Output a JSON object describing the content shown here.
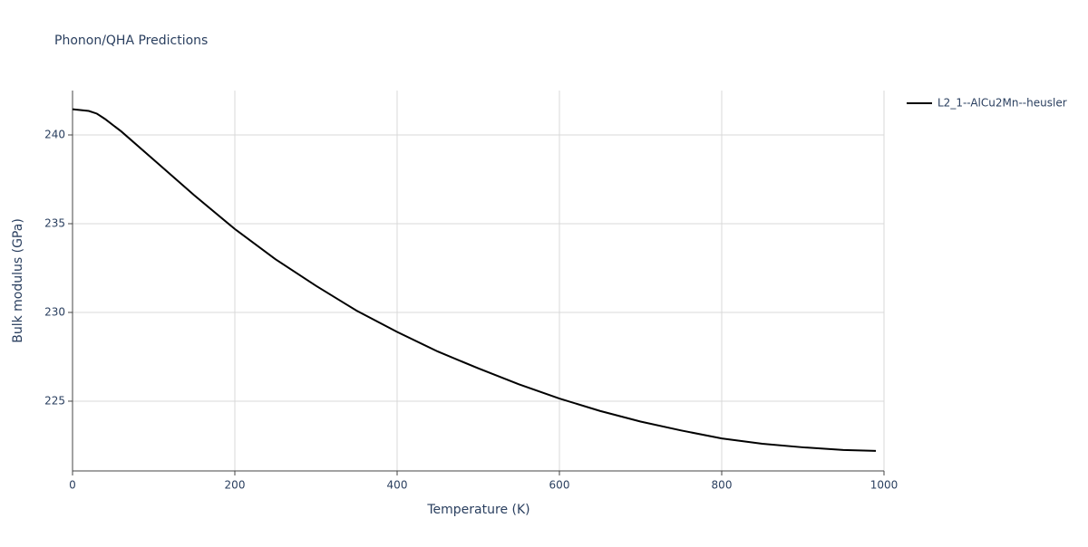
{
  "chart_data": {
    "type": "line",
    "title": "Phonon/QHA Predictions",
    "x_label": "Temperature (K)",
    "y_label": "Bulk modulus (GPa)",
    "x": [
      0,
      20,
      30,
      40,
      60,
      100,
      150,
      200,
      250,
      300,
      350,
      400,
      450,
      500,
      550,
      600,
      650,
      700,
      750,
      800,
      850,
      900,
      950,
      990
    ],
    "series": [
      {
        "name": "L2_1--AlCu2Mn--heusler",
        "color": "#000000",
        "values": [
          241.45,
          241.35,
          241.2,
          240.9,
          240.2,
          238.6,
          236.6,
          234.7,
          233.0,
          231.5,
          230.1,
          228.9,
          227.8,
          226.85,
          225.95,
          225.15,
          224.45,
          223.85,
          223.35,
          222.9,
          222.6,
          222.4,
          222.25,
          222.2
        ]
      }
    ],
    "xlim": [
      0,
      1000
    ],
    "xticks": [
      0,
      200,
      400,
      600,
      800,
      1000
    ],
    "ylim": [
      221.07,
      242.5
    ],
    "yticks": [
      225,
      230,
      235,
      240
    ],
    "grid": true,
    "legend": "right"
  }
}
